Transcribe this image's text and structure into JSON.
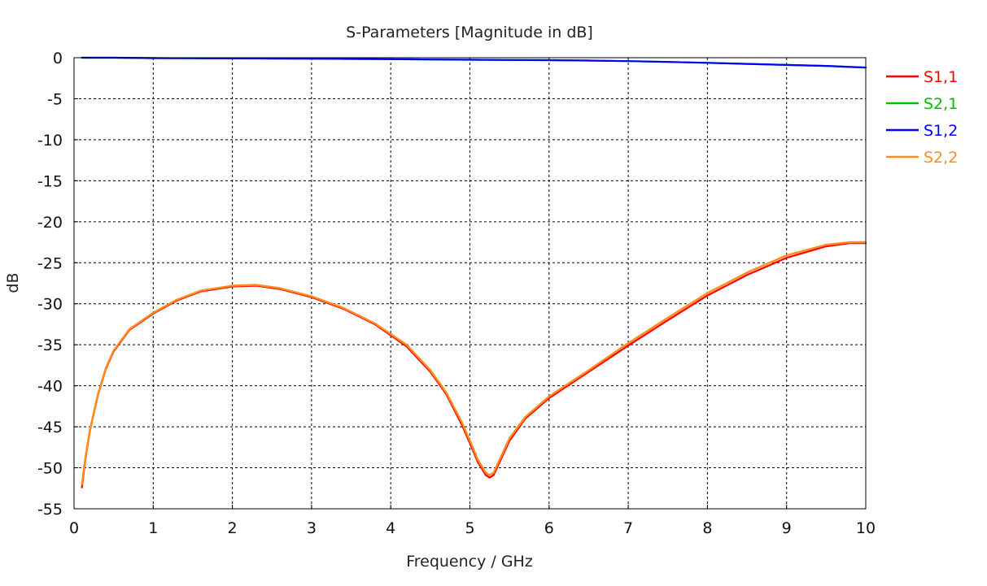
{
  "chart_data": {
    "type": "line",
    "title": "S-Parameters [Magnitude in dB]",
    "xlabel": "Frequency / GHz",
    "ylabel": "dB",
    "xlim": [
      0,
      10
    ],
    "ylim": [
      -55,
      0
    ],
    "x_ticks": [
      0,
      1,
      2,
      3,
      4,
      5,
      6,
      7,
      8,
      9,
      10
    ],
    "y_ticks": [
      0,
      -5,
      -10,
      -15,
      -20,
      -25,
      -30,
      -35,
      -40,
      -45,
      -50,
      -55
    ],
    "grid": true,
    "legend_position": "right",
    "series": [
      {
        "name": "S1,1",
        "color": "#ff0000",
        "x": [
          0.1,
          0.15,
          0.2,
          0.3,
          0.4,
          0.5,
          0.7,
          1.0,
          1.3,
          1.6,
          2.0,
          2.3,
          2.6,
          3.0,
          3.4,
          3.8,
          4.2,
          4.5,
          4.7,
          4.9,
          5.0,
          5.1,
          5.2,
          5.25,
          5.3,
          5.4,
          5.5,
          5.7,
          6.0,
          6.5,
          7.0,
          7.5,
          8.0,
          8.5,
          9.0,
          9.5,
          9.8,
          10.0
        ],
        "y": [
          -52.4,
          -48.5,
          -45.5,
          -41.2,
          -38.0,
          -35.8,
          -33.2,
          -31.2,
          -29.6,
          -28.5,
          -27.9,
          -27.8,
          -28.2,
          -29.2,
          -30.6,
          -32.5,
          -35.2,
          -38.3,
          -41.0,
          -44.8,
          -47.0,
          -49.3,
          -50.9,
          -51.2,
          -50.9,
          -48.8,
          -46.7,
          -44.0,
          -41.5,
          -38.3,
          -35.1,
          -32.0,
          -29.0,
          -26.5,
          -24.4,
          -23.0,
          -22.6,
          -22.6
        ]
      },
      {
        "name": "S2,1",
        "color": "#00c000",
        "x": [
          0.1,
          0.5,
          1.0,
          1.5,
          2.0,
          2.5,
          3.0,
          3.5,
          4.0,
          4.5,
          5.0,
          5.5,
          6.0,
          6.5,
          7.0,
          7.5,
          8.0,
          8.5,
          9.0,
          9.5,
          10.0
        ],
        "y": [
          0.0,
          0.0,
          -0.05,
          -0.07,
          -0.08,
          -0.1,
          -0.12,
          -0.15,
          -0.18,
          -0.22,
          -0.25,
          -0.28,
          -0.3,
          -0.35,
          -0.42,
          -0.52,
          -0.62,
          -0.75,
          -0.88,
          -1.0,
          -1.2
        ]
      },
      {
        "name": "S1,2",
        "color": "#0000ff",
        "x": [
          0.1,
          0.5,
          1.0,
          1.5,
          2.0,
          2.5,
          3.0,
          3.5,
          4.0,
          4.5,
          5.0,
          5.5,
          6.0,
          6.5,
          7.0,
          7.5,
          8.0,
          8.5,
          9.0,
          9.5,
          10.0
        ],
        "y": [
          0.0,
          0.0,
          -0.05,
          -0.07,
          -0.08,
          -0.1,
          -0.12,
          -0.15,
          -0.18,
          -0.22,
          -0.25,
          -0.28,
          -0.3,
          -0.35,
          -0.42,
          -0.52,
          -0.62,
          -0.75,
          -0.88,
          -1.0,
          -1.2
        ]
      },
      {
        "name": "S2,2",
        "color": "#ff8c1a",
        "x": [
          0.1,
          0.15,
          0.2,
          0.3,
          0.4,
          0.5,
          0.7,
          1.0,
          1.3,
          1.6,
          2.0,
          2.3,
          2.6,
          3.0,
          3.4,
          3.8,
          4.2,
          4.5,
          4.7,
          4.9,
          5.0,
          5.1,
          5.2,
          5.25,
          5.3,
          5.4,
          5.5,
          5.7,
          6.0,
          6.5,
          7.0,
          7.5,
          8.0,
          8.5,
          9.0,
          9.5,
          9.8,
          10.0
        ],
        "y": [
          -52.0,
          -48.3,
          -45.4,
          -41.1,
          -37.9,
          -35.7,
          -33.1,
          -31.1,
          -29.5,
          -28.4,
          -27.8,
          -27.7,
          -28.1,
          -29.1,
          -30.5,
          -32.4,
          -35.0,
          -38.1,
          -40.8,
          -44.5,
          -46.7,
          -49.0,
          -50.6,
          -50.9,
          -50.6,
          -48.5,
          -46.4,
          -43.8,
          -41.3,
          -38.1,
          -34.8,
          -31.7,
          -28.7,
          -26.2,
          -24.1,
          -22.8,
          -22.5,
          -22.5
        ]
      }
    ]
  }
}
